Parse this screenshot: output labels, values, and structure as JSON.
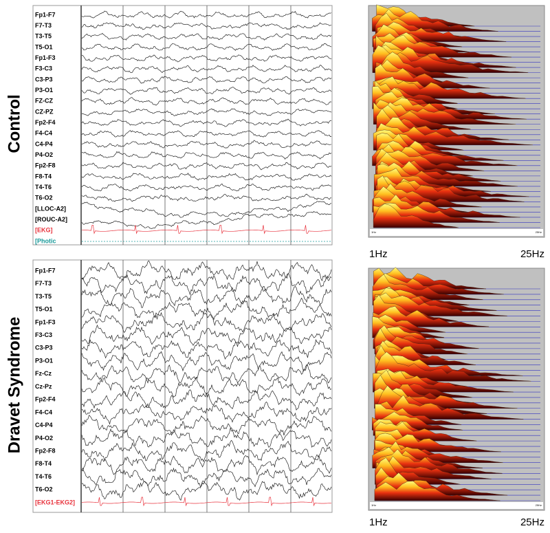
{
  "panels": [
    {
      "title": "Control",
      "channels": [
        {
          "name": "Fp1-F7"
        },
        {
          "name": "F7-T3"
        },
        {
          "name": "T3-T5"
        },
        {
          "name": "T5-O1"
        },
        {
          "name": "Fp1-F3"
        },
        {
          "name": "F3-C3"
        },
        {
          "name": "C3-P3"
        },
        {
          "name": "P3-O1"
        },
        {
          "name": "FZ-CZ"
        },
        {
          "name": "CZ-PZ"
        },
        {
          "name": "Fp2-F4"
        },
        {
          "name": "F4-C4"
        },
        {
          "name": "C4-P4"
        },
        {
          "name": "P4-O2"
        },
        {
          "name": "Fp2-F8"
        },
        {
          "name": "F8-T4"
        },
        {
          "name": "T4-T6"
        },
        {
          "name": "T6-O2"
        },
        {
          "name": "[LLOC-A2]"
        },
        {
          "name": "[ROUC-A2]"
        },
        {
          "name": "[EKG]",
          "color": "#e8323c"
        },
        {
          "name": "[Photic",
          "color": "#1a9a9a"
        }
      ],
      "spectrum_inner_min": "1Hz",
      "spectrum_inner_max": "25Hz",
      "spectrum_min": "1Hz",
      "spectrum_max": "25Hz"
    },
    {
      "title": "Dravet Syndrome",
      "channels": [
        {
          "name": "Fp1-F7"
        },
        {
          "name": "F7-T3"
        },
        {
          "name": "T3-T5"
        },
        {
          "name": "T5-O1"
        },
        {
          "name": "Fp1-F3"
        },
        {
          "name": "F3-C3"
        },
        {
          "name": "C3-P3"
        },
        {
          "name": "P3-O1"
        },
        {
          "name": "Fz-Cz"
        },
        {
          "name": "Cz-Pz"
        },
        {
          "name": "Fp2-F4"
        },
        {
          "name": "F4-C4"
        },
        {
          "name": "C4-P4"
        },
        {
          "name": "P4-O2"
        },
        {
          "name": "Fp2-F8"
        },
        {
          "name": "F8-T4"
        },
        {
          "name": "T4-T6"
        },
        {
          "name": "T6-O2"
        },
        {
          "name": "[EKG1-EKG2]",
          "color": "#e8323c"
        }
      ],
      "spectrum_inner_min": "1Hz",
      "spectrum_inner_max": "25Hz",
      "spectrum_min": "1Hz",
      "spectrum_max": "25Hz"
    }
  ]
}
